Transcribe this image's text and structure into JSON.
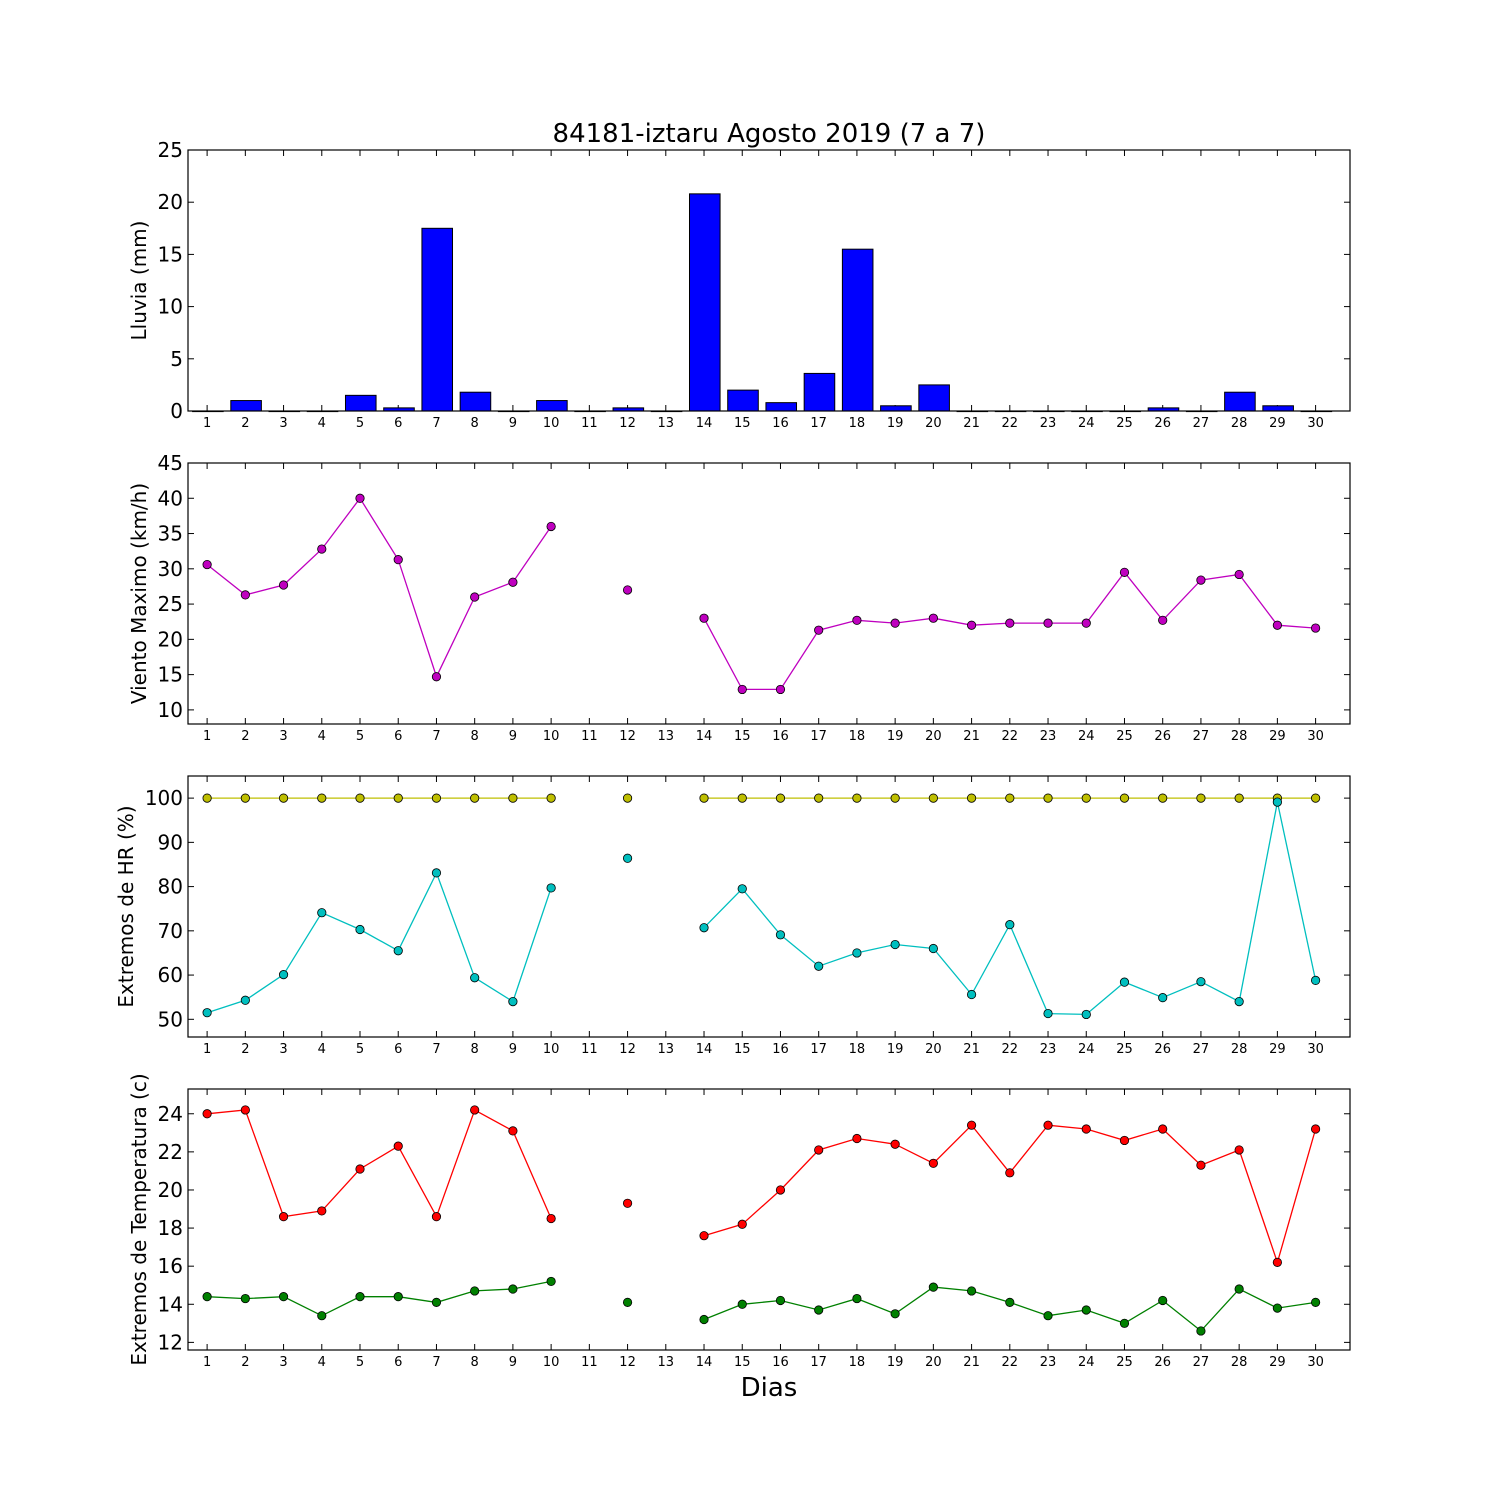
{
  "figure": {
    "title": "84181-iztaru Agosto 2019  (7 a 7)",
    "xlabel": "Dias"
  },
  "chart_data": [
    {
      "type": "bar",
      "ylabel": "Lluvia (mm)",
      "ylim": [
        0,
        25
      ],
      "yticks": [
        0,
        5,
        10,
        15,
        20,
        25
      ],
      "x": [
        1,
        2,
        3,
        4,
        5,
        6,
        7,
        8,
        9,
        10,
        11,
        12,
        13,
        14,
        15,
        16,
        17,
        18,
        19,
        20,
        21,
        22,
        23,
        24,
        25,
        26,
        27,
        28,
        29,
        30
      ],
      "colors": {
        "bar": "#0000ff"
      },
      "series": [
        {
          "values": [
            0.0,
            1.0,
            0.0,
            0.0,
            1.5,
            0.3,
            17.5,
            1.8,
            0.0,
            1.0,
            0.0,
            0.3,
            0.0,
            20.8,
            2.0,
            0.8,
            3.6,
            15.5,
            0.5,
            2.5,
            0.0,
            0.0,
            0.0,
            0.0,
            0.0,
            0.3,
            0.0,
            1.8,
            0.5,
            0.0
          ]
        }
      ]
    },
    {
      "type": "line",
      "ylabel": "Viento Maximo (km/h)",
      "ylim": [
        8,
        45
      ],
      "yticks": [
        10,
        15,
        20,
        25,
        30,
        35,
        40,
        45
      ],
      "x": [
        1,
        2,
        3,
        4,
        5,
        6,
        7,
        8,
        9,
        10,
        11,
        12,
        13,
        14,
        15,
        16,
        17,
        18,
        19,
        20,
        21,
        22,
        23,
        24,
        25,
        26,
        27,
        28,
        29,
        30
      ],
      "series": [
        {
          "color": "#bf00bf",
          "values": [
            30.6,
            26.3,
            27.7,
            32.8,
            40.0,
            31.3,
            14.7,
            26.0,
            28.1,
            36.0,
            null,
            27.0,
            null,
            23.0,
            12.9,
            12.9,
            21.3,
            22.7,
            22.3,
            23.0,
            22.0,
            22.3,
            22.3,
            22.3,
            29.5,
            22.7,
            28.4,
            29.2,
            22.0,
            21.6
          ]
        }
      ]
    },
    {
      "type": "line",
      "ylabel": "Extremos de HR (%)",
      "ylim": [
        46,
        105
      ],
      "yticks": [
        50,
        60,
        70,
        80,
        90,
        100
      ],
      "x": [
        1,
        2,
        3,
        4,
        5,
        6,
        7,
        8,
        9,
        10,
        11,
        12,
        13,
        14,
        15,
        16,
        17,
        18,
        19,
        20,
        21,
        22,
        23,
        24,
        25,
        26,
        27,
        28,
        29,
        30
      ],
      "series": [
        {
          "color": "#bfbf00",
          "values": [
            100,
            100,
            100,
            100,
            100,
            100,
            100,
            100,
            100,
            100,
            null,
            100,
            null,
            100,
            100,
            100,
            100,
            100,
            100,
            100,
            100,
            100,
            100,
            100,
            100,
            100,
            100,
            100,
            100,
            100
          ]
        },
        {
          "color": "#00bfbf",
          "values": [
            51.5,
            54.3,
            60.1,
            74.1,
            70.3,
            65.5,
            83.1,
            59.4,
            54.0,
            79.7,
            null,
            86.4,
            null,
            70.7,
            79.5,
            69.1,
            62.0,
            65.0,
            66.9,
            66.0,
            55.6,
            71.4,
            51.3,
            51.1,
            58.4,
            54.9,
            58.5,
            54.0,
            99.1,
            58.8
          ]
        }
      ]
    },
    {
      "type": "line",
      "ylabel": "Extremos de Temperatura (c)",
      "ylim": [
        11.6,
        25.3
      ],
      "yticks": [
        12,
        14,
        16,
        18,
        20,
        22,
        24
      ],
      "x": [
        1,
        2,
        3,
        4,
        5,
        6,
        7,
        8,
        9,
        10,
        11,
        12,
        13,
        14,
        15,
        16,
        17,
        18,
        19,
        20,
        21,
        22,
        23,
        24,
        25,
        26,
        27,
        28,
        29,
        30
      ],
      "series": [
        {
          "color": "#ff0000",
          "values": [
            24.0,
            24.2,
            18.6,
            18.9,
            21.1,
            22.3,
            18.6,
            24.2,
            23.1,
            18.5,
            null,
            19.3,
            null,
            17.6,
            18.2,
            20.0,
            22.1,
            22.7,
            22.4,
            21.4,
            23.4,
            20.9,
            23.4,
            23.2,
            22.6,
            23.2,
            21.3,
            22.1,
            16.2,
            23.2
          ]
        },
        {
          "color": "#008000",
          "values": [
            14.4,
            14.3,
            14.4,
            13.4,
            14.4,
            14.4,
            14.1,
            14.7,
            14.8,
            15.2,
            null,
            14.1,
            null,
            13.2,
            14.0,
            14.2,
            13.7,
            14.3,
            13.5,
            14.9,
            14.7,
            14.1,
            13.4,
            13.7,
            13.0,
            14.2,
            12.6,
            14.8,
            13.8,
            14.1
          ]
        }
      ]
    }
  ]
}
